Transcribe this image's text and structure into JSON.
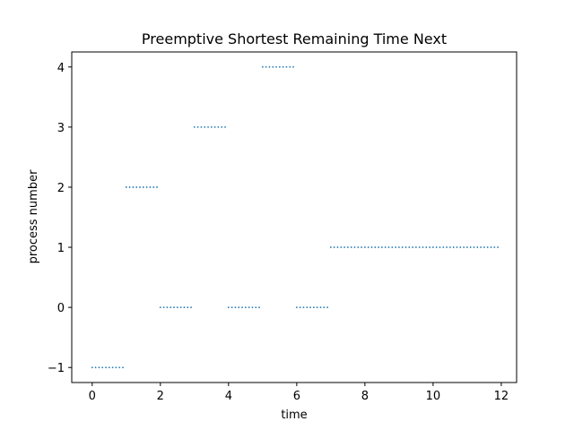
{
  "chart_data": {
    "type": "scatter",
    "title": "Preemptive Shortest Remaining Time Next",
    "xlabel": "time",
    "ylabel": "process number",
    "xlim": [
      -0.6,
      12.45
    ],
    "ylim": [
      -1.25,
      4.25
    ],
    "xticks": [
      0,
      2,
      4,
      6,
      8,
      10,
      12
    ],
    "yticks": [
      -1,
      0,
      1,
      2,
      3,
      4
    ],
    "ytick_labels": [
      "−1",
      "0",
      "1",
      "2",
      "3",
      "4"
    ],
    "grid": false,
    "point_step": 0.1,
    "segments": [
      {
        "process": -1,
        "start": 0.0,
        "end": 0.9
      },
      {
        "process": 2,
        "start": 1.0,
        "end": 1.9
      },
      {
        "process": 0,
        "start": 2.0,
        "end": 2.9
      },
      {
        "process": 3,
        "start": 3.0,
        "end": 3.9
      },
      {
        "process": 0,
        "start": 4.0,
        "end": 4.9
      },
      {
        "process": 4,
        "start": 5.0,
        "end": 5.9
      },
      {
        "process": 0,
        "start": 6.0,
        "end": 6.9
      },
      {
        "process": 1,
        "start": 7.0,
        "end": 11.9
      }
    ],
    "marker_color": "#1f77b4"
  }
}
